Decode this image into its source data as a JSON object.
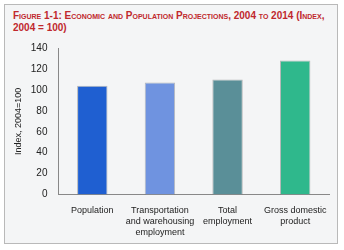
{
  "chart_data": {
    "type": "bar",
    "title": "Figure 1-1: Economic and Population Projections, 2004 to 2014 (Index, 2004 = 100)",
    "y_label": "Index, 2004=100",
    "categories": [
      "Population",
      "Transportation and warehousing employment",
      "Total employment",
      "Gross domestic product"
    ],
    "values": [
      104,
      107,
      110,
      128
    ],
    "colors": [
      "#1f5fd1",
      "#6f93e0",
      "#5a8f98",
      "#2fb88c"
    ],
    "ylim": [
      0,
      140
    ],
    "yticks": [
      0,
      20,
      40,
      60,
      80,
      100,
      120,
      140
    ],
    "grid": false
  }
}
